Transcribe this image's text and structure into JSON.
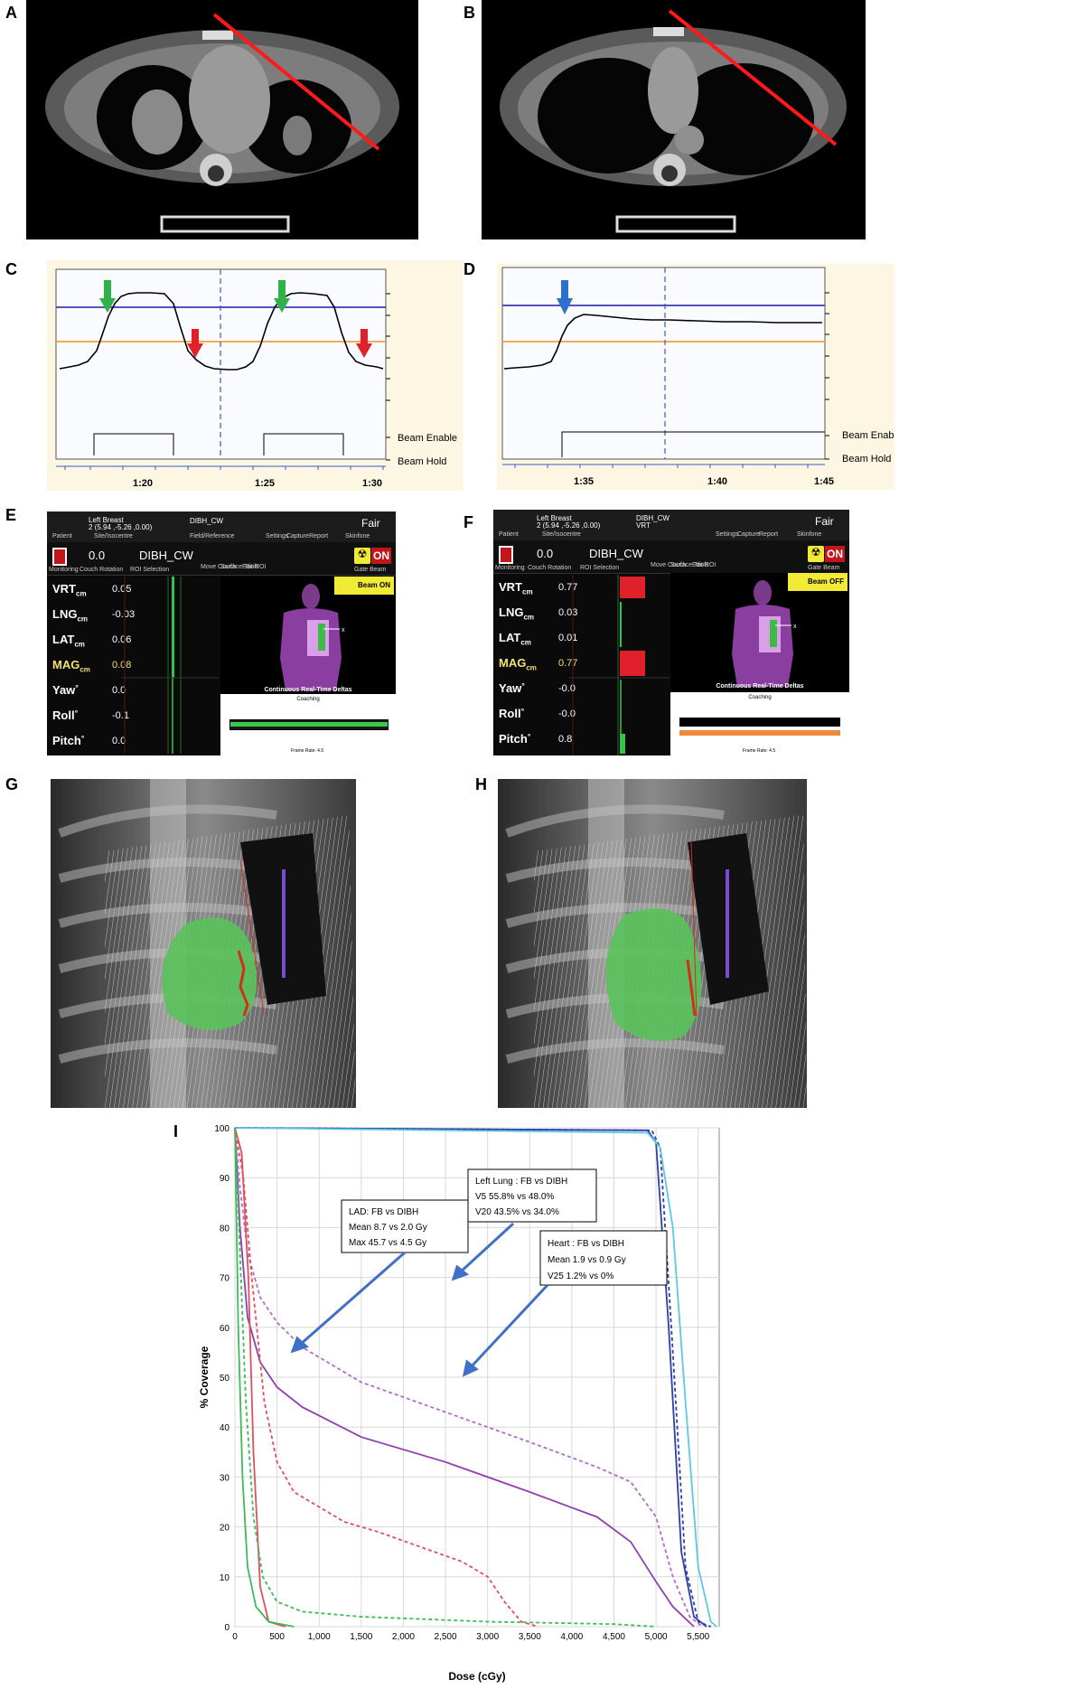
{
  "figure": {
    "panel_labels": [
      "A",
      "B",
      "C",
      "D",
      "E",
      "F",
      "G",
      "H",
      "I"
    ]
  },
  "gating": {
    "beam_enable": "Beam Enable",
    "beam_hold": "Beam Hold",
    "c_ticks": [
      "1:20",
      "1:25",
      "1:30"
    ],
    "d_ticks": [
      "1:35",
      "1:40",
      "1:45"
    ]
  },
  "sgrt_common": {
    "patient": "Patient",
    "site_label": "Left Breast",
    "site_coords": "2  (5.94 ,-5.26 ,0.00)",
    "site_sub": "Site/Isocentre",
    "field_label": "DIBH_CW",
    "field_sub_e": "Field/Reference",
    "field_sub_f": "VRT",
    "settings": "Settings",
    "capture": "Capture",
    "report": "Report",
    "status": "Fair",
    "status_sub": "Skinfone",
    "monitoring": "Monitoring",
    "couch_val": "0.0",
    "couch_sub": "Couch Rotation",
    "roi": "DIBH_CW",
    "roi_sub": "ROI Selection",
    "move_couch": "Move Couch",
    "surface_tools": "Surface Tools",
    "edit_roi": "Edit ROI",
    "gate_beam": "Gate Beam",
    "on": "ON",
    "deltas_title": "Continuous Real-Time Deltas",
    "coaching": "Coaching",
    "frame_rate": "Frame Rate:  4.5"
  },
  "panel_e": {
    "beam": "Beam ON",
    "rows": [
      {
        "label": "VRT",
        "unit": "cm",
        "value": "0.05",
        "hl": false
      },
      {
        "label": "LNG",
        "unit": "cm",
        "value": "-0.03",
        "hl": false
      },
      {
        "label": "LAT",
        "unit": "cm",
        "value": "0.06",
        "hl": false
      },
      {
        "label": "MAG",
        "unit": "cm",
        "value": "0.08",
        "hl": true
      },
      {
        "label": "Yaw",
        "unit": "°",
        "value": "0.0",
        "hl": false
      },
      {
        "label": "Roll",
        "unit": "°",
        "value": "-0.1",
        "hl": false
      },
      {
        "label": "Pitch",
        "unit": "°",
        "value": "0.0",
        "hl": false
      }
    ]
  },
  "panel_f": {
    "beam": "Beam OFF",
    "rows": [
      {
        "label": "VRT",
        "unit": "cm",
        "value": "0.77",
        "hl": false
      },
      {
        "label": "LNG",
        "unit": "cm",
        "value": "0.03",
        "hl": false
      },
      {
        "label": "LAT",
        "unit": "cm",
        "value": "0.01",
        "hl": false
      },
      {
        "label": "MAG",
        "unit": "cm",
        "value": "0.77",
        "hl": true
      },
      {
        "label": "Yaw",
        "unit": "°",
        "value": "-0.0",
        "hl": false
      },
      {
        "label": "Roll",
        "unit": "°",
        "value": "-0.0",
        "hl": false
      },
      {
        "label": "Pitch",
        "unit": "°",
        "value": "0.8",
        "hl": false
      }
    ]
  },
  "dvh_boxes": {
    "lung": [
      "Left Lung : FB vs DIBH",
      "V5  55.8%  vs  48.0%",
      "V20  43.5%  vs  34.0%"
    ],
    "lad": [
      "LAD: FB vs DIBH",
      "Mean  8.7  vs  2.0 Gy",
      "Max  45.7  vs  4.5 Gy"
    ],
    "heart": [
      "Heart : FB vs DIBH",
      "Mean  1.9  vs  0.9  Gy",
      "V25  1.2%  vs  0%"
    ]
  },
  "chart_data": {
    "type": "line",
    "xlabel": "Dose (cGy)",
    "ylabel": "% Coverage",
    "xlim": [
      0,
      5750
    ],
    "ylim": [
      0,
      100
    ],
    "xticks": [
      "0",
      "500",
      "1,000",
      "1,500",
      "2,000",
      "2,500",
      "3,000",
      "3,500",
      "4,000",
      "4,500",
      "5,000",
      "5,500"
    ],
    "yticks": [
      "0",
      "10",
      "20",
      "30",
      "40",
      "50",
      "60",
      "70",
      "80",
      "90",
      "100"
    ],
    "grid": true,
    "series": [
      {
        "color": "#2f3ea8",
        "dash": false,
        "points": [
          [
            0,
            100
          ],
          [
            4900,
            99.5
          ],
          [
            5000,
            97
          ],
          [
            5150,
            60
          ],
          [
            5300,
            15
          ],
          [
            5450,
            2
          ],
          [
            5600,
            0
          ]
        ]
      },
      {
        "color": "#2f3ea8",
        "dash": true,
        "points": [
          [
            0,
            100
          ],
          [
            4950,
            99.5
          ],
          [
            5050,
            96
          ],
          [
            5200,
            55
          ],
          [
            5350,
            12
          ],
          [
            5500,
            1
          ],
          [
            5650,
            0
          ]
        ]
      },
      {
        "color": "#5bc9e0",
        "dash": false,
        "points": [
          [
            0,
            100
          ],
          [
            4900,
            99
          ],
          [
            5050,
            96
          ],
          [
            5200,
            80
          ],
          [
            5350,
            45
          ],
          [
            5500,
            12
          ],
          [
            5650,
            1
          ],
          [
            5720,
            0
          ]
        ]
      },
      {
        "color": "#8e3fb0",
        "dash": false,
        "points": [
          [
            0,
            100
          ],
          [
            60,
            80
          ],
          [
            150,
            62
          ],
          [
            300,
            53
          ],
          [
            500,
            48
          ],
          [
            800,
            44
          ],
          [
            1500,
            38
          ],
          [
            2500,
            33
          ],
          [
            3500,
            27
          ],
          [
            4300,
            22
          ],
          [
            4700,
            17
          ],
          [
            5000,
            9
          ],
          [
            5200,
            4
          ],
          [
            5450,
            0
          ]
        ]
      },
      {
        "color": "#b06ec9",
        "dash": true,
        "points": [
          [
            0,
            100
          ],
          [
            60,
            88
          ],
          [
            150,
            75
          ],
          [
            300,
            66
          ],
          [
            500,
            61
          ],
          [
            800,
            56
          ],
          [
            1500,
            49
          ],
          [
            2500,
            43
          ],
          [
            3500,
            37
          ],
          [
            4300,
            32
          ],
          [
            4700,
            29
          ],
          [
            5000,
            22
          ],
          [
            5200,
            10
          ],
          [
            5400,
            2
          ],
          [
            5550,
            0
          ]
        ]
      },
      {
        "color": "#e05060",
        "dash": false,
        "points": [
          [
            0,
            100
          ],
          [
            80,
            95
          ],
          [
            160,
            70
          ],
          [
            220,
            35
          ],
          [
            300,
            8
          ],
          [
            400,
            1
          ],
          [
            600,
            0
          ]
        ]
      },
      {
        "color": "#e05060",
        "dash": true,
        "points": [
          [
            0,
            100
          ],
          [
            100,
            90
          ],
          [
            200,
            70
          ],
          [
            350,
            45
          ],
          [
            500,
            33
          ],
          [
            700,
            27
          ],
          [
            1000,
            24
          ],
          [
            1300,
            21
          ],
          [
            1700,
            19
          ],
          [
            2200,
            16
          ],
          [
            2700,
            13
          ],
          [
            3000,
            10
          ],
          [
            3200,
            5
          ],
          [
            3400,
            1
          ],
          [
            3600,
            0
          ]
        ]
      },
      {
        "color": "#3dbb5a",
        "dash": false,
        "points": [
          [
            0,
            100
          ],
          [
            40,
            60
          ],
          [
            90,
            30
          ],
          [
            150,
            12
          ],
          [
            250,
            4
          ],
          [
            400,
            1
          ],
          [
            700,
            0
          ]
        ]
      },
      {
        "color": "#3dbb5a",
        "dash": true,
        "points": [
          [
            0,
            100
          ],
          [
            60,
            75
          ],
          [
            130,
            45
          ],
          [
            220,
            22
          ],
          [
            330,
            10
          ],
          [
            500,
            5
          ],
          [
            800,
            3
          ],
          [
            1500,
            2
          ],
          [
            3000,
            1
          ],
          [
            4500,
            0.5
          ],
          [
            5000,
            0
          ]
        ]
      }
    ]
  }
}
